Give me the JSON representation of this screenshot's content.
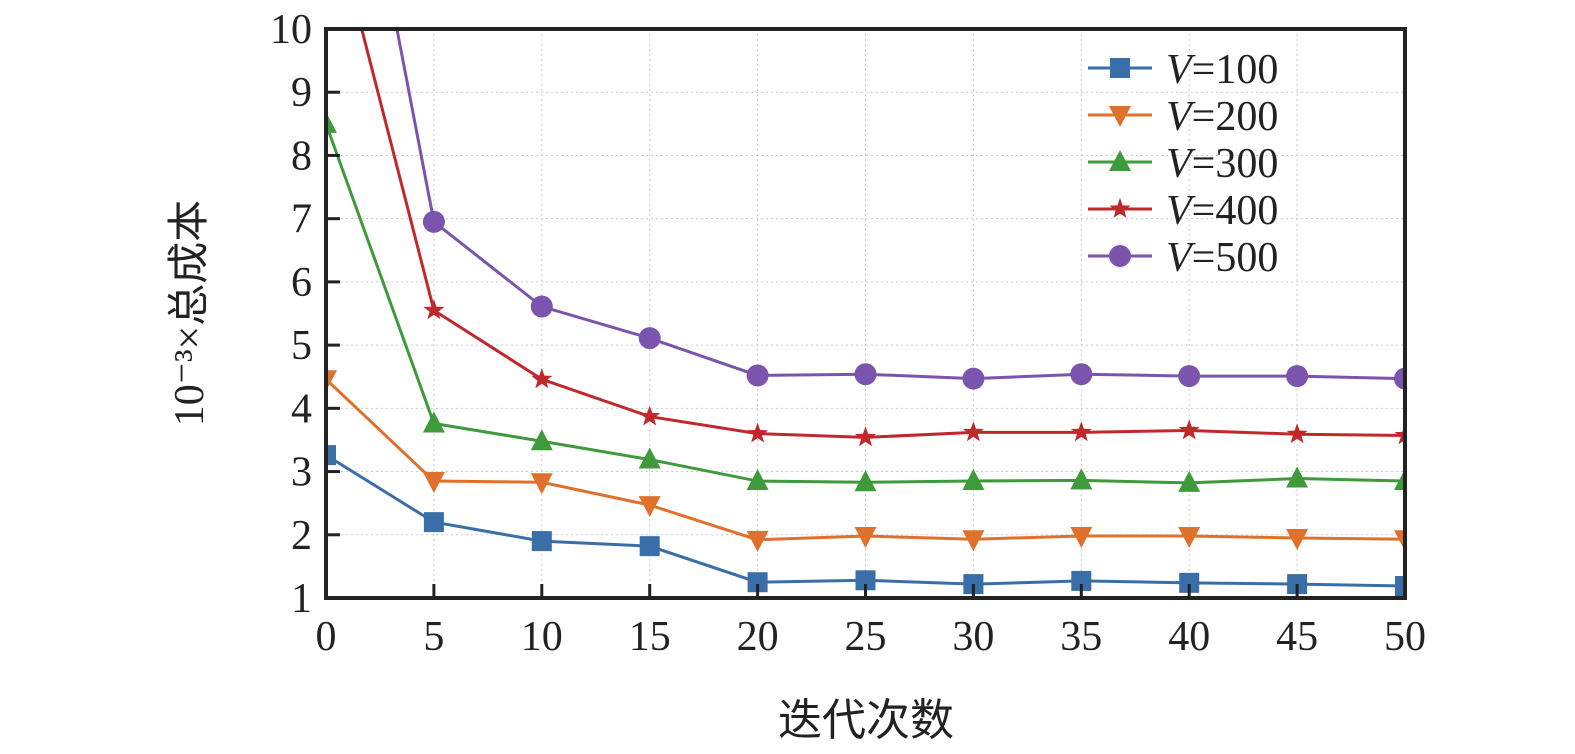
{
  "chart_data": {
    "type": "line",
    "title": "",
    "xlabel": "迭代次数",
    "ylabel": "10⁻³×总成本",
    "xlim": [
      0,
      50
    ],
    "ylim": [
      1,
      10
    ],
    "xticks": [
      0,
      5,
      10,
      15,
      20,
      25,
      30,
      35,
      40,
      45,
      50
    ],
    "yticks": [
      1,
      2,
      3,
      4,
      5,
      6,
      7,
      8,
      9,
      10
    ],
    "grid": true,
    "legend_position": "top-right",
    "x": [
      0,
      5,
      10,
      15,
      20,
      25,
      30,
      35,
      40,
      45,
      50
    ],
    "series": [
      {
        "name": "V=100",
        "var": "V",
        "label_rest": "=100",
        "color": "#3a6ea8",
        "marker": "square",
        "values": [
          3.26,
          2.2,
          1.9,
          1.82,
          1.25,
          1.28,
          1.22,
          1.27,
          1.24,
          1.22,
          1.19
        ]
      },
      {
        "name": "V=200",
        "var": "V",
        "label_rest": "=200",
        "color": "#e0712c",
        "marker": "triangle-down",
        "values": [
          4.46,
          2.85,
          2.83,
          2.47,
          1.92,
          1.98,
          1.93,
          1.98,
          1.98,
          1.95,
          1.93
        ]
      },
      {
        "name": "V=300",
        "var": "V",
        "label_rest": "=300",
        "color": "#3e9a3a",
        "marker": "triangle-up",
        "values": [
          8.5,
          3.76,
          3.48,
          3.19,
          2.85,
          2.83,
          2.85,
          2.86,
          2.82,
          2.89,
          2.85
        ]
      },
      {
        "name": "V=400",
        "var": "V",
        "label_rest": "=400",
        "color": "#c0282c",
        "marker": "star",
        "values": [
          12.2,
          5.55,
          4.46,
          3.87,
          3.6,
          3.54,
          3.62,
          3.62,
          3.65,
          3.59,
          3.57
        ]
      },
      {
        "name": "V=500",
        "var": "V",
        "label_rest": "=500",
        "color": "#7b55ad",
        "marker": "circle",
        "values": [
          15.85,
          6.95,
          5.61,
          5.11,
          4.52,
          4.54,
          4.47,
          4.54,
          4.51,
          4.51,
          4.47
        ]
      }
    ]
  }
}
